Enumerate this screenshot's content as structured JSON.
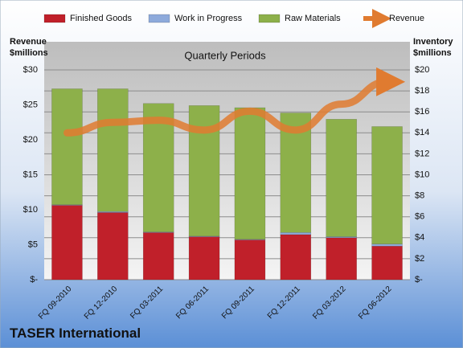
{
  "chart_data": {
    "type": "bar",
    "title": "Quarterly Periods",
    "y_label": "Revenue $millions",
    "y2_label": "Inventory $millions",
    "footer": "TASER International",
    "stacked": true,
    "categories": [
      "FQ 09-2010",
      "FQ 12-2010",
      "FQ 03-2011",
      "FQ 06-2011",
      "FQ 09-2011",
      "FQ 12-2011",
      "FQ 03-2012",
      "FQ 06-2012"
    ],
    "series": [
      {
        "name": "Finished Goods",
        "color": "#c0202a",
        "axis": "y2",
        "type": "bar",
        "values": [
          7.1,
          6.4,
          4.5,
          4.1,
          3.8,
          4.3,
          4.0,
          3.2
        ]
      },
      {
        "name": "Work in Progress",
        "color": "#8eaadb",
        "axis": "y2",
        "type": "bar",
        "values": [
          0.05,
          0.1,
          0.05,
          0.05,
          0.05,
          0.2,
          0.1,
          0.2
        ]
      },
      {
        "name": "Raw Materials",
        "color": "#8db04a",
        "axis": "y2",
        "type": "bar",
        "values": [
          11.05,
          11.7,
          12.25,
          12.45,
          12.55,
          11.4,
          11.2,
          11.2
        ]
      },
      {
        "name": "Revenue",
        "color": "#e07b30",
        "axis": "y",
        "type": "line",
        "values": [
          21.0,
          22.5,
          22.8,
          21.4,
          24.1,
          21.4,
          25.1,
          28.3
        ]
      }
    ],
    "ylim": [
      0,
      30
    ],
    "yticks": [
      {
        "value": 0,
        "label": "$-"
      },
      {
        "value": 5,
        "label": "$5"
      },
      {
        "value": 10,
        "label": "$10"
      },
      {
        "value": 15,
        "label": "$15"
      },
      {
        "value": 20,
        "label": "$20"
      },
      {
        "value": 25,
        "label": "$25"
      },
      {
        "value": 30,
        "label": "$30"
      }
    ],
    "y2lim": [
      0,
      20
    ],
    "y2ticks": [
      {
        "value": 0,
        "label": "$-"
      },
      {
        "value": 2,
        "label": "$2"
      },
      {
        "value": 4,
        "label": "$4"
      },
      {
        "value": 6,
        "label": "$6"
      },
      {
        "value": 8,
        "label": "$8"
      },
      {
        "value": 10,
        "label": "$10"
      },
      {
        "value": 12,
        "label": "$12"
      },
      {
        "value": 14,
        "label": "$14"
      },
      {
        "value": 16,
        "label": "$16"
      },
      {
        "value": 18,
        "label": "$18"
      },
      {
        "value": 20,
        "label": "$20"
      }
    ],
    "grid": true
  }
}
